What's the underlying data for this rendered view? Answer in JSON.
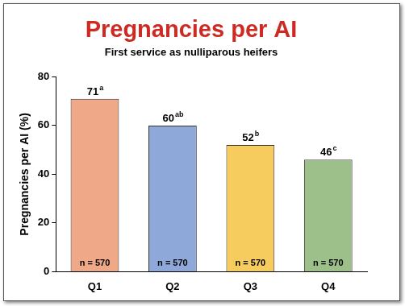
{
  "chart_data": {
    "type": "bar",
    "title": "Pregnancies per AI",
    "subtitle": "First service as nulliparous heifers",
    "y_label": "Pregnancies per AI (%)",
    "categories": [
      "Q1",
      "Q2",
      "Q3",
      "Q4"
    ],
    "values": [
      71,
      60,
      52,
      46
    ],
    "colors": [
      "#f0a988",
      "#8ea9d9",
      "#f6cc5e",
      "#9dc08b"
    ],
    "superscripts": [
      "a",
      "ab",
      "b",
      "c"
    ],
    "inside_labels": [
      "n = 570",
      "n = 570",
      "n = 570",
      "n = 570"
    ],
    "data_labels": true,
    "ylim": [
      0,
      80
    ],
    "yticks": [
      0,
      20,
      40,
      60,
      80
    ],
    "grid": false
  }
}
